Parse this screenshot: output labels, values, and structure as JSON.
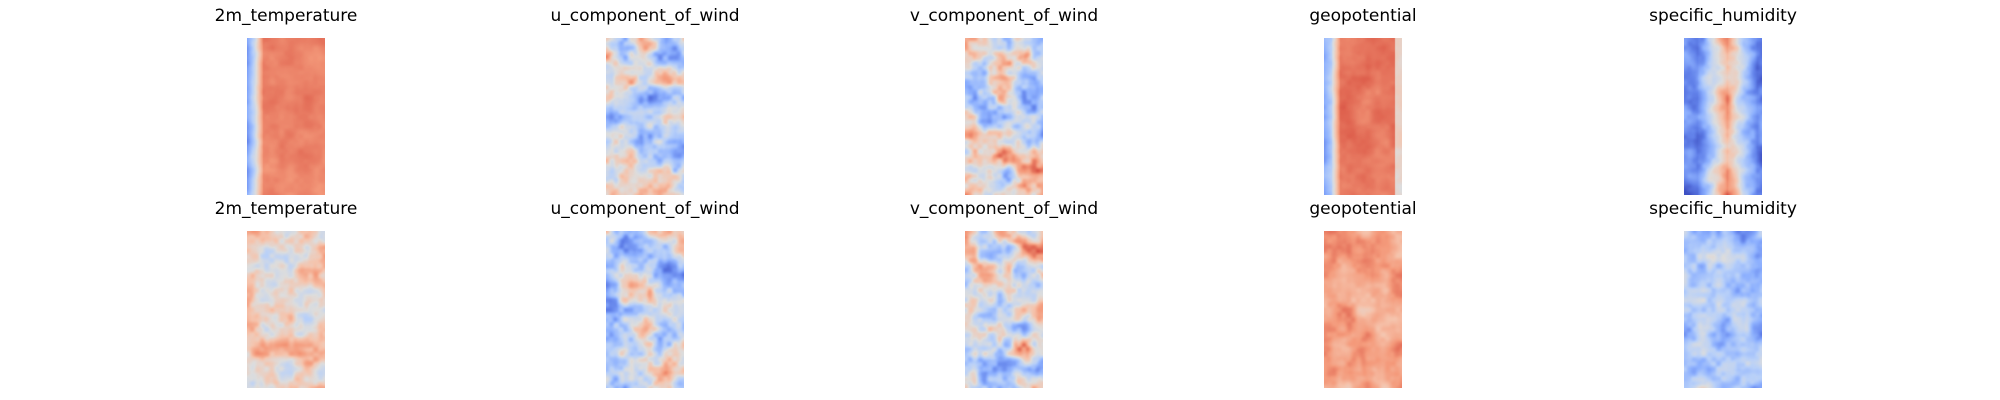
{
  "chart_data": {
    "type": "heatmap",
    "colormap": "coolwarm",
    "axes_visible": false,
    "grid": false,
    "layout": "2 rows x 5 columns",
    "panels": [
      {
        "row": 1,
        "title": "2m_temperature",
        "field": "2m_temperature",
        "pattern": "warm core band, cool left edge"
      },
      {
        "row": 1,
        "title": "u_component_of_wind",
        "field": "u_component_of_wind",
        "pattern": "mixed, mostly cool-neutral"
      },
      {
        "row": 1,
        "title": "v_component_of_wind",
        "field": "v_component_of_wind",
        "pattern": "mixed, mostly neutral-warm"
      },
      {
        "row": 1,
        "title": "geopotential",
        "field": "geopotential",
        "pattern": "warm core band, cool left edge"
      },
      {
        "row": 1,
        "title": "specific_humidity",
        "field": "specific_humidity",
        "pattern": "cool sides, warm center streak"
      },
      {
        "row": 2,
        "title": "2m_temperature",
        "field": "2m_temperature",
        "pattern": "mixed warm-neutral"
      },
      {
        "row": 2,
        "title": "u_component_of_wind",
        "field": "u_component_of_wind",
        "pattern": "mixed, mostly cool-neutral"
      },
      {
        "row": 2,
        "title": "v_component_of_wind",
        "field": "v_component_of_wind",
        "pattern": "mixed, noisy"
      },
      {
        "row": 2,
        "title": "geopotential",
        "field": "geopotential",
        "pattern": "mostly warm"
      },
      {
        "row": 2,
        "title": "specific_humidity",
        "field": "specific_humidity",
        "pattern": "mostly cool"
      }
    ]
  }
}
